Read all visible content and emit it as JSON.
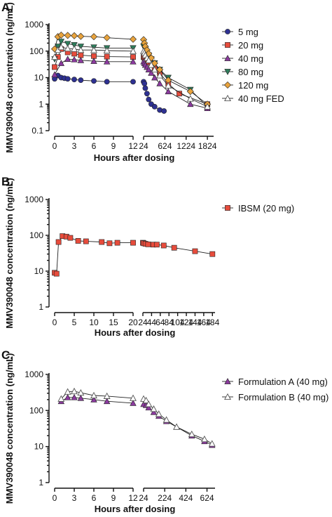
{
  "chart_data": [
    {
      "type": "line",
      "panel_label": "A.",
      "ylabel": "MMV390048 concentration (ng/mL)",
      "xlabel": "Hours after dosing",
      "y_scale": "log",
      "ylim": [
        0.1,
        1000
      ],
      "yticks": [
        0.1,
        1,
        10,
        100,
        1000
      ],
      "ytick_labels": [
        "0.1",
        "1",
        "10",
        "100",
        "1000"
      ],
      "x_segments": [
        {
          "range": [
            0,
            12
          ],
          "ticks": [
            0,
            3,
            6,
            9,
            12
          ],
          "tick_labels": [
            "0",
            "3",
            "6",
            "9",
            "12"
          ]
        },
        {
          "range": [
            24,
            2000
          ],
          "ticks": [
            24,
            624,
            1224,
            1824
          ],
          "tick_labels": [
            "24",
            "624",
            "1224",
            "1824"
          ]
        }
      ],
      "legend_position": "right",
      "series": [
        {
          "name": "5 mg",
          "color": "#2e3192",
          "marker": "circle",
          "x": [
            0,
            0.5,
            1,
            1.5,
            2,
            3,
            4,
            6,
            8,
            12,
            24,
            48,
            72,
            120,
            168,
            240,
            336,
            480,
            600
          ],
          "y": [
            9,
            12,
            10,
            9.5,
            9,
            8.5,
            8,
            7.5,
            7,
            7,
            7,
            6,
            4,
            2.5,
            1.5,
            1,
            0.8,
            0.6,
            0.55
          ]
        },
        {
          "name": "20 mg",
          "color": "#e74c3c",
          "marker": "square",
          "x": [
            0,
            0.5,
            1,
            2,
            3,
            4,
            6,
            8,
            12,
            24,
            48,
            72,
            120,
            168,
            240,
            336,
            480,
            720,
            1032,
            1824
          ],
          "y": [
            25,
            60,
            120,
            90,
            80,
            70,
            65,
            62,
            60,
            60,
            55,
            50,
            45,
            38,
            30,
            22,
            15,
            6,
            2.5,
            1.0
          ]
        },
        {
          "name": "40 mg",
          "color": "#8b3a9e",
          "marker": "triangle",
          "x": [
            0,
            1,
            2,
            3,
            4,
            6,
            8,
            12,
            24,
            48,
            72,
            120,
            168,
            240,
            336,
            480,
            720,
            1344,
            1824
          ],
          "y": [
            13,
            35,
            50,
            48,
            45,
            42,
            40,
            40,
            40,
            35,
            30,
            25,
            20,
            15,
            10,
            6,
            3,
            1.0,
            0.7
          ]
        },
        {
          "name": "80 mg",
          "color": "#2e7d5b",
          "marker": "triangle-down",
          "x": [
            0,
            0.5,
            1,
            2,
            3,
            4,
            6,
            8,
            12,
            24,
            48,
            72,
            120,
            168,
            240,
            336,
            480,
            720,
            1344,
            1824
          ],
          "y": [
            50,
            150,
            230,
            190,
            170,
            150,
            140,
            130,
            130,
            150,
            130,
            110,
            90,
            70,
            50,
            35,
            20,
            10,
            3.5,
            0.8
          ]
        },
        {
          "name": "120 mg",
          "color": "#e8a33d",
          "marker": "diamond",
          "x": [
            0,
            0.5,
            1,
            2,
            3,
            4,
            6,
            8,
            12,
            24,
            48,
            72,
            120,
            168,
            240,
            336,
            480,
            720,
            1344,
            1824
          ],
          "y": [
            120,
            350,
            400,
            390,
            380,
            360,
            350,
            320,
            280,
            270,
            200,
            150,
            110,
            80,
            55,
            35,
            20,
            8,
            3,
            1.0
          ]
        },
        {
          "name": "40 mg FED",
          "color": "#9aa0a6",
          "marker": "triangle-open",
          "x": [
            0,
            0.5,
            1,
            2,
            3,
            4,
            6,
            8,
            12,
            24,
            48,
            72,
            120,
            168,
            240,
            336,
            480,
            720,
            1344,
            1824
          ],
          "y": [
            60,
            110,
            140,
            125,
            120,
            110,
            110,
            105,
            100,
            100,
            85,
            70,
            55,
            45,
            30,
            20,
            12,
            5,
            1.6,
            0.8
          ]
        }
      ]
    },
    {
      "type": "line",
      "panel_label": "B.",
      "ylabel": "MMV390048 concentration (ng/mL)",
      "xlabel": "Hours after dosing",
      "y_scale": "log",
      "ylim": [
        1,
        1000
      ],
      "yticks": [
        1,
        10,
        100,
        1000
      ],
      "ytick_labels": [
        "1",
        "10",
        "100",
        "1000"
      ],
      "x_segments": [
        {
          "range": [
            0,
            20
          ],
          "ticks": [
            0,
            5,
            10,
            15,
            20
          ],
          "tick_labels": [
            "0",
            "5",
            "10",
            "15",
            "20"
          ]
        },
        {
          "range": [
            24,
            190
          ],
          "ticks": [
            24,
            44,
            64,
            84,
            104,
            124,
            144,
            164,
            184
          ],
          "tick_labels": [
            "24",
            "44",
            "64",
            "84",
            "104",
            "124",
            "144",
            "164",
            "184"
          ]
        }
      ],
      "legend_position": "right",
      "series": [
        {
          "name": "IBSM (20 mg)",
          "color": "#e74c3c",
          "marker": "square",
          "x": [
            0,
            0.5,
            1,
            2,
            3,
            4,
            6,
            8,
            12,
            14,
            16,
            20,
            24,
            26,
            30,
            36,
            48,
            56,
            72,
            96,
            144,
            184
          ],
          "y": [
            9,
            8.5,
            65,
            95,
            92,
            85,
            70,
            68,
            65,
            60,
            62,
            62,
            62,
            60,
            58,
            56,
            55,
            55,
            52,
            45,
            36,
            30
          ]
        }
      ]
    },
    {
      "type": "line",
      "panel_label": "C.",
      "ylabel": "MMV390048 concentration (ng/mL)",
      "xlabel": "Hours after dosing",
      "y_scale": "log",
      "ylim": [
        1,
        1000
      ],
      "yticks": [
        1,
        10,
        100,
        1000
      ],
      "ytick_labels": [
        "1",
        "10",
        "100",
        "1000"
      ],
      "x_segments": [
        {
          "range": [
            0,
            12
          ],
          "ticks": [
            0,
            3,
            6,
            9,
            12
          ],
          "tick_labels": [
            "0",
            "3",
            "6",
            "9",
            "12"
          ]
        },
        {
          "range": [
            24,
            700
          ],
          "ticks": [
            24,
            224,
            424,
            624
          ],
          "tick_labels": [
            "24",
            "224",
            "424",
            "624"
          ]
        }
      ],
      "legend_position": "right",
      "series": [
        {
          "name": "Formulation A (40 mg)",
          "color": "#8b3a9e",
          "marker": "triangle",
          "x": [
            1,
            2,
            3,
            4,
            6,
            8,
            12,
            24,
            48,
            72,
            120,
            168,
            240,
            336,
            480,
            600,
            672
          ],
          "y": [
            180,
            230,
            230,
            220,
            200,
            180,
            160,
            150,
            140,
            120,
            90,
            70,
            50,
            35,
            20,
            14,
            11
          ]
        },
        {
          "name": "Formulation B (40 mg)",
          "color": "#aab0b6",
          "marker": "triangle-open",
          "x": [
            1,
            2,
            3,
            4,
            6,
            8,
            12,
            24,
            48,
            72,
            120,
            168,
            240,
            336,
            480,
            600,
            672
          ],
          "y": [
            210,
            330,
            340,
            310,
            260,
            250,
            220,
            210,
            190,
            150,
            110,
            80,
            55,
            35,
            22,
            16,
            12
          ]
        }
      ]
    }
  ]
}
